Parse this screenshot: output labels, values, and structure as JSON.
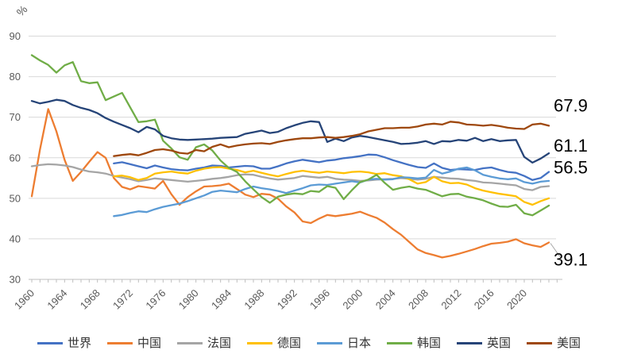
{
  "chart_data": {
    "type": "line",
    "title": "",
    "unit_label": "%",
    "x_axis": {
      "start_year": 1960,
      "end_year": 2024,
      "label_years": [
        1960,
        1964,
        1968,
        1972,
        1976,
        1980,
        1984,
        1988,
        1992,
        1996,
        2000,
        2004,
        2008,
        2012,
        2016,
        2020
      ],
      "minor_tick_every_years": 1
    },
    "y_axis": {
      "min": 30,
      "max": 90,
      "ticks": [
        30,
        40,
        50,
        60,
        70,
        80,
        90
      ],
      "grid": true
    },
    "legend_position": "bottom",
    "series": [
      {
        "name": "世界",
        "color": "#4472C4",
        "start_year": 1970,
        "values": [
          58.6,
          58.9,
          58.4,
          57.9,
          57.4,
          58.1,
          57.6,
          57.2,
          57.0,
          56.9,
          57.3,
          57.6,
          58.1,
          58.0,
          57.6,
          57.8,
          58.0,
          57.9,
          57.3,
          57.3,
          57.9,
          58.6,
          59.1,
          59.5,
          59.2,
          58.9,
          59.3,
          59.5,
          59.9,
          60.1,
          60.4,
          60.8,
          60.7,
          60.1,
          59.4,
          58.8,
          58.2,
          57.7,
          57.5,
          58.6,
          57.5,
          57.0,
          57.2,
          57.1,
          57.0,
          57.4,
          57.6,
          57.0,
          56.5,
          56.3,
          55.5,
          54.5,
          55.0,
          56.5
        ]
      },
      {
        "name": "中国",
        "color": "#ED7D31",
        "start_year": 1960,
        "values": [
          50.5,
          62.0,
          72.0,
          66.5,
          59.5,
          54.3,
          56.5,
          59.0,
          61.4,
          60.0,
          55.0,
          52.8,
          52.2,
          53.0,
          52.7,
          52.4,
          54.3,
          51.0,
          48.4,
          50.3,
          51.7,
          52.9,
          53.0,
          53.2,
          53.6,
          52.3,
          50.9,
          50.3,
          51.1,
          50.9,
          49.9,
          48.0,
          46.5,
          44.3,
          43.9,
          45.0,
          45.9,
          45.6,
          45.9,
          46.2,
          46.7,
          45.9,
          45.2,
          44.0,
          42.4,
          41.0,
          39.2,
          37.4,
          36.5,
          36.0,
          35.4,
          35.8,
          36.3,
          36.9,
          37.5,
          38.2,
          38.8,
          39.0,
          39.3,
          39.9,
          38.9,
          38.4,
          38.0,
          39.1
        ]
      },
      {
        "name": "法国",
        "color": "#A5A5A5",
        "start_year": 1960,
        "values": [
          57.9,
          58.2,
          58.4,
          58.3,
          58.1,
          57.7,
          57.1,
          56.6,
          56.4,
          56.1,
          55.5,
          55.1,
          54.7,
          54.2,
          54.5,
          54.9,
          54.7,
          54.5,
          54.3,
          54.1,
          54.3,
          54.5,
          54.8,
          55.0,
          55.3,
          55.7,
          55.9,
          55.8,
          55.3,
          54.9,
          54.6,
          54.8,
          55.0,
          55.5,
          55.3,
          55.1,
          55.3,
          54.8,
          54.6,
          54.5,
          54.3,
          54.4,
          54.6,
          54.7,
          54.8,
          55.0,
          54.8,
          54.6,
          54.8,
          55.3,
          55.1,
          54.9,
          54.8,
          54.5,
          54.3,
          53.9,
          53.8,
          53.6,
          53.4,
          53.2,
          52.3,
          52.0,
          52.8,
          53.0
        ]
      },
      {
        "name": "德国",
        "color": "#FFC000",
        "start_year": 1970,
        "values": [
          55.4,
          55.6,
          55.2,
          54.5,
          55.0,
          56.1,
          56.4,
          56.6,
          56.3,
          56.1,
          56.8,
          57.3,
          57.6,
          57.7,
          57.3,
          57.0,
          56.4,
          56.8,
          56.3,
          55.8,
          55.4,
          56.0,
          56.5,
          56.8,
          56.5,
          56.3,
          56.6,
          56.4,
          56.2,
          56.5,
          56.6,
          56.4,
          56.0,
          56.2,
          55.7,
          55.4,
          54.7,
          53.6,
          54.0,
          55.3,
          54.2,
          53.7,
          53.8,
          53.4,
          52.5,
          51.9,
          51.5,
          51.1,
          50.8,
          50.5,
          49.1,
          48.4,
          49.3,
          50.0
        ]
      },
      {
        "name": "日本",
        "color": "#5B9BD5",
        "start_year": 1970,
        "values": [
          45.6,
          45.9,
          46.4,
          46.8,
          46.6,
          47.3,
          47.9,
          48.3,
          48.7,
          49.3,
          50.0,
          50.7,
          51.6,
          51.9,
          51.7,
          51.5,
          52.3,
          52.9,
          52.5,
          52.2,
          51.8,
          51.3,
          51.9,
          52.5,
          53.2,
          53.4,
          53.3,
          53.6,
          53.9,
          54.2,
          53.9,
          54.6,
          54.8,
          54.6,
          54.7,
          55.2,
          55.1,
          54.9,
          55.1,
          57.0,
          56.1,
          56.6,
          57.3,
          57.6,
          56.9,
          55.8,
          55.3,
          54.9,
          54.7,
          54.9,
          54.0,
          53.6,
          54.1,
          54.3
        ]
      },
      {
        "name": "韩国",
        "color": "#70AD47",
        "start_year": 1960,
        "values": [
          85.3,
          84.0,
          82.9,
          81.0,
          82.8,
          83.6,
          78.9,
          78.4,
          78.6,
          74.2,
          75.1,
          76.0,
          72.4,
          68.8,
          69.0,
          69.4,
          64.2,
          62.3,
          60.1,
          59.5,
          62.6,
          63.3,
          61.8,
          59.3,
          57.5,
          56.5,
          54.2,
          52.2,
          50.3,
          48.9,
          50.4,
          50.9,
          51.2,
          51.0,
          51.8,
          51.6,
          53.0,
          52.6,
          49.8,
          52.0,
          54.0,
          54.6,
          55.8,
          53.8,
          52.1,
          52.6,
          52.9,
          52.4,
          52.1,
          51.3,
          50.5,
          51.0,
          51.1,
          50.4,
          50.0,
          49.5,
          48.7,
          48.0,
          47.9,
          48.4,
          46.3,
          45.8,
          47.0,
          48.2
        ]
      },
      {
        "name": "英国",
        "color": "#264478",
        "start_year": 1960,
        "values": [
          74.0,
          73.4,
          73.8,
          74.3,
          74.0,
          73.0,
          72.3,
          71.8,
          71.0,
          69.8,
          68.9,
          68.1,
          67.3,
          66.3,
          67.6,
          67.0,
          65.4,
          64.8,
          64.5,
          64.4,
          64.5,
          64.6,
          64.7,
          64.9,
          65.0,
          65.1,
          65.9,
          66.3,
          66.7,
          66.1,
          66.4,
          67.3,
          68.0,
          68.6,
          69.0,
          68.8,
          63.9,
          64.7,
          64.1,
          65.0,
          65.4,
          65.1,
          64.7,
          64.3,
          63.9,
          63.4,
          63.5,
          63.7,
          64.1,
          63.4,
          64.1,
          64.0,
          64.4,
          64.2,
          64.9,
          64.1,
          64.6,
          64.1,
          64.3,
          64.4,
          60.2,
          58.8,
          59.8,
          61.1
        ]
      },
      {
        "name": "美国",
        "color": "#9E480E",
        "start_year": 1970,
        "values": [
          60.4,
          60.7,
          60.9,
          60.6,
          61.2,
          61.9,
          62.1,
          61.8,
          61.2,
          61.0,
          61.9,
          61.6,
          62.7,
          63.3,
          62.6,
          63.0,
          63.3,
          63.5,
          63.6,
          63.4,
          63.9,
          64.3,
          64.6,
          64.8,
          64.8,
          65.0,
          65.1,
          64.9,
          65.1,
          65.4,
          65.8,
          66.5,
          66.9,
          67.3,
          67.3,
          67.4,
          67.4,
          67.7,
          68.2,
          68.4,
          68.2,
          68.9,
          68.7,
          68.2,
          68.1,
          67.9,
          68.1,
          67.8,
          67.4,
          67.2,
          67.1,
          68.2,
          68.4,
          67.9
        ]
      }
    ],
    "annotations": [
      {
        "text": "67.9",
        "series": "美国"
      },
      {
        "text": "61.1",
        "series": "英国"
      },
      {
        "text": "56.5",
        "series": "世界"
      },
      {
        "text": "39.1",
        "series": "中国",
        "leader_line": true
      }
    ]
  }
}
